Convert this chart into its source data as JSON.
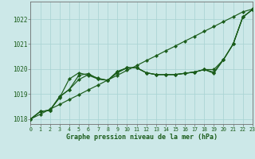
{
  "title": "Graphe pression niveau de la mer (hPa)",
  "bg_color": "#cce8e8",
  "grid_color": "#aad4d4",
  "line_color": "#1a5c1a",
  "xlim": [
    0,
    23
  ],
  "ylim": [
    1017.8,
    1022.7
  ],
  "xticks": [
    0,
    1,
    2,
    3,
    4,
    5,
    6,
    7,
    8,
    9,
    10,
    11,
    12,
    13,
    14,
    15,
    16,
    17,
    18,
    19,
    20,
    21,
    22,
    23
  ],
  "yticks": [
    1018,
    1019,
    1020,
    1021,
    1022
  ],
  "line_a": [
    1018.0,
    1018.3,
    1018.35,
    1018.85,
    1019.6,
    1019.85,
    1019.75,
    1019.6,
    1019.55,
    1019.85,
    1020.05,
    1020.05,
    1019.85,
    1019.78,
    1019.78,
    1019.78,
    1019.83,
    1019.88,
    1019.98,
    1019.98,
    1020.38,
    1021.0,
    1022.08,
    1022.38
  ],
  "line_b": [
    1018.0,
    1018.3,
    1018.35,
    1018.88,
    1019.18,
    1019.75,
    1019.82,
    1019.6,
    1019.55,
    1019.9,
    1020.05,
    1020.05,
    1019.85,
    1019.78,
    1019.78,
    1019.78,
    1019.83,
    1019.88,
    1019.98,
    1019.88,
    1020.38,
    1021.0,
    1022.08,
    1022.38
  ],
  "line_c": [
    1018.0,
    1018.3,
    1018.35,
    1018.9,
    1019.18,
    1019.58,
    1019.78,
    1019.63,
    1019.55,
    1019.9,
    1020.05,
    1020.05,
    1019.85,
    1019.78,
    1019.78,
    1019.78,
    1019.83,
    1019.88,
    1019.98,
    1019.83,
    1020.38,
    1021.0,
    1022.08,
    1022.38
  ],
  "line_diag": [
    1018.0,
    1018.19,
    1018.39,
    1018.58,
    1018.78,
    1018.97,
    1019.17,
    1019.36,
    1019.56,
    1019.75,
    1019.95,
    1020.14,
    1020.34,
    1020.53,
    1020.73,
    1020.92,
    1021.12,
    1021.31,
    1021.51,
    1021.7,
    1021.9,
    1022.09,
    1022.29,
    1022.4
  ]
}
